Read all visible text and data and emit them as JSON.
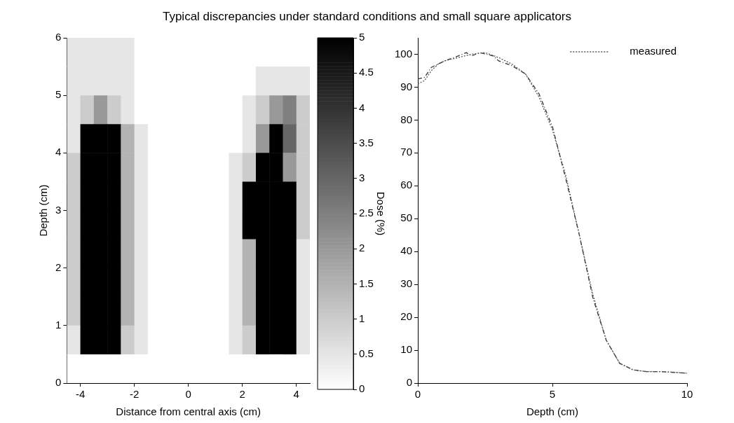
{
  "chart_data": [
    {
      "type": "heatmap",
      "title": "Typical discrepancies under standard conditions and small square applicators",
      "xlabel": "Distance from central axis (cm)",
      "ylabel": "Depth (cm)",
      "clabel": "Dose (%)",
      "x": [
        -4.25,
        -3.75,
        -3.25,
        -2.75,
        -2.25,
        -1.75,
        -1.25,
        -0.75,
        -0.25,
        0.25,
        0.75,
        1.25,
        1.75,
        2.25,
        2.75,
        3.25,
        3.75,
        4.25
      ],
      "y": [
        5.75,
        5.25,
        4.75,
        4.25,
        3.75,
        3.25,
        2.75,
        2.25,
        1.75,
        1.25,
        0.75,
        0.25
      ],
      "cells": [
        [
          0.5,
          0.5,
          0.5,
          0.5,
          0.5,
          0,
          0,
          0,
          0,
          0,
          0,
          0,
          0,
          0,
          0,
          0,
          0,
          0
        ],
        [
          0.5,
          0.5,
          0.5,
          0.5,
          0.5,
          0,
          0,
          0,
          0,
          0,
          0,
          0,
          0,
          0,
          0.5,
          0.5,
          0.5,
          0.5
        ],
        [
          0.5,
          1,
          2,
          1,
          0.5,
          0,
          0,
          0,
          0,
          0,
          0,
          0,
          0,
          0.5,
          1,
          2,
          2.5,
          1
        ],
        [
          0.5,
          5,
          5,
          5,
          1.5,
          0.5,
          0,
          0,
          0,
          0,
          0,
          0,
          0,
          0.5,
          2,
          5,
          3,
          1
        ],
        [
          1,
          5,
          5,
          5,
          1.5,
          0.5,
          0,
          0,
          0,
          0,
          0,
          0,
          0.5,
          1,
          5,
          5,
          2,
          1
        ],
        [
          1,
          5,
          5,
          5,
          1.5,
          0.5,
          0,
          0,
          0,
          0,
          0,
          0,
          0.5,
          5,
          5,
          5,
          5,
          1
        ],
        [
          1,
          5,
          5,
          5,
          1.5,
          0.5,
          0,
          0,
          0,
          0,
          0,
          0,
          0.5,
          5,
          5,
          5,
          5,
          1
        ],
        [
          1,
          5,
          5,
          5,
          1.5,
          0.5,
          0,
          0,
          0,
          0,
          0,
          0,
          0.5,
          1.5,
          5,
          5,
          5,
          0.5
        ],
        [
          1,
          5,
          5,
          5,
          1.5,
          0.5,
          0,
          0,
          0,
          0,
          0,
          0,
          0.5,
          1.5,
          5,
          5,
          5,
          0.5
        ],
        [
          1,
          5,
          5,
          5,
          1.5,
          0.5,
          0,
          0,
          0,
          0,
          0,
          0,
          0.5,
          1.5,
          5,
          5,
          5,
          0.5
        ],
        [
          0.5,
          5,
          5,
          5,
          1,
          0.5,
          0,
          0,
          0,
          0,
          0,
          0,
          0.5,
          1,
          5,
          5,
          5,
          0.5
        ],
        [
          0,
          0,
          0,
          0,
          0,
          0,
          0,
          0,
          0,
          0,
          0,
          0,
          0,
          0,
          0,
          0,
          0,
          0
        ]
      ],
      "xlim": [
        -4.5,
        4.5
      ],
      "xticks": [
        -4,
        -2,
        0,
        2,
        4
      ],
      "ylim": [
        0,
        6
      ],
      "yticks": [
        0,
        1,
        2,
        3,
        4,
        5,
        6
      ],
      "clim": [
        0,
        5
      ],
      "cticks": [
        0,
        0.5,
        1,
        1.5,
        2,
        2.5,
        3,
        3.5,
        4,
        4.5,
        5
      ]
    },
    {
      "type": "line",
      "xlabel": "Depth (cm)",
      "legend": "top right",
      "series": [
        {
          "name": "measured",
          "color": "#555555",
          "line_style": "dotted",
          "x": [
            0,
            0.25,
            0.5,
            0.75,
            1,
            1.5,
            2,
            2.5,
            3,
            3.5,
            4,
            4.5,
            5,
            5.5,
            6,
            6.5,
            7,
            7.5,
            8,
            8.5,
            9,
            9.5,
            10
          ],
          "values": [
            91,
            92,
            95,
            97,
            98,
            99,
            100,
            100.5,
            99,
            97,
            94,
            87,
            77,
            63,
            45,
            27,
            13,
            6,
            4,
            3.5,
            3.5,
            3.3,
            3
          ]
        },
        {
          "color": "#333333",
          "line_style": "dashed",
          "x": [
            0,
            0.25,
            0.5,
            1,
            1.5,
            1.8,
            2,
            2.3,
            2.8,
            3,
            3.5,
            4,
            4.5,
            5,
            5.5,
            6,
            6.5,
            7,
            7.5,
            8,
            8.5,
            9,
            10
          ],
          "values": [
            92.5,
            93,
            96,
            98,
            99.5,
            100.5,
            99.5,
            100.5,
            99.5,
            98,
            96.5,
            94,
            88,
            78,
            62,
            45,
            26,
            13,
            6,
            4,
            3.5,
            3.5,
            3
          ]
        }
      ],
      "xlim": [
        0,
        10
      ],
      "xticks": [
        0,
        5,
        10
      ],
      "ylim": [
        0,
        105
      ],
      "yticks": [
        0,
        10,
        20,
        30,
        40,
        50,
        60,
        70,
        80,
        90,
        100
      ]
    }
  ]
}
